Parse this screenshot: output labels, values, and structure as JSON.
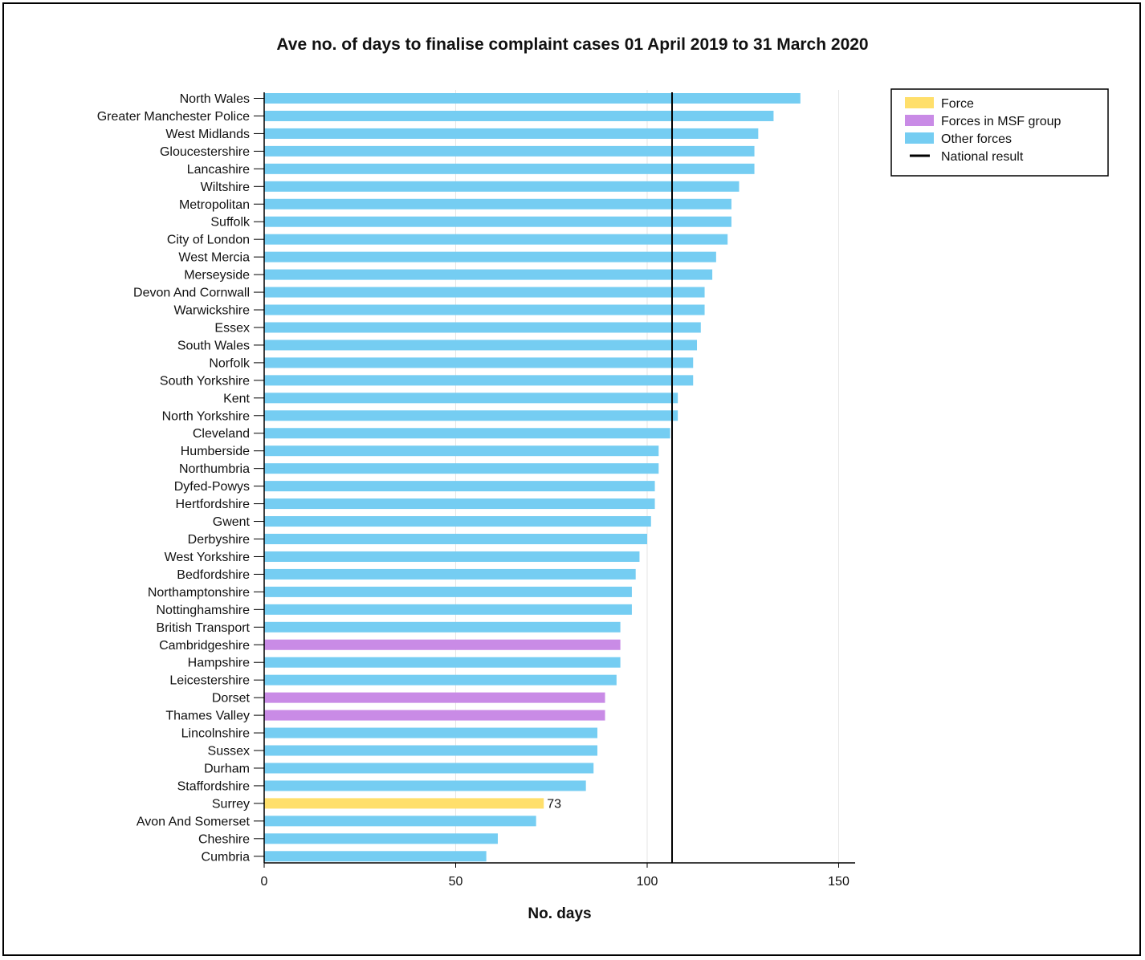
{
  "chart_data": {
    "type": "bar",
    "orientation": "horizontal",
    "title": "Ave no. of days to finalise complaint cases 01 April 2019 to 31 March 2020",
    "xlabel": "No. days",
    "ylabel": "",
    "xlim": [
      0,
      155
    ],
    "xticks": [
      0,
      50,
      100,
      150
    ],
    "grid": true,
    "legend_position": "top-right",
    "national_result": 106.5,
    "colors": {
      "force": "#FFDF6B",
      "msf": "#C98BE6",
      "other": "#75CDF2",
      "national": "#000000"
    },
    "legend": [
      {
        "key": "force",
        "label": "Force",
        "kind": "swatch"
      },
      {
        "key": "msf",
        "label": "Forces in MSF group",
        "kind": "swatch"
      },
      {
        "key": "other",
        "label": "Other forces",
        "kind": "swatch"
      },
      {
        "key": "national",
        "label": "National result",
        "kind": "line"
      }
    ],
    "categories": [
      "North Wales",
      "Greater Manchester Police",
      "West Midlands",
      "Gloucestershire",
      "Lancashire",
      "Wiltshire",
      "Metropolitan",
      "Suffolk",
      "City of London",
      "West Mercia",
      "Merseyside",
      "Devon And Cornwall",
      "Warwickshire",
      "Essex",
      "South Wales",
      "Norfolk",
      "South Yorkshire",
      "Kent",
      "North Yorkshire",
      "Cleveland",
      "Humberside",
      "Northumbria",
      "Dyfed-Powys",
      "Hertfordshire",
      "Gwent",
      "Derbyshire",
      "West Yorkshire",
      "Bedfordshire",
      "Northamptonshire",
      "Nottinghamshire",
      "British Transport",
      "Cambridgeshire",
      "Hampshire",
      "Leicestershire",
      "Dorset",
      "Thames Valley",
      "Lincolnshire",
      "Sussex",
      "Durham",
      "Staffordshire",
      "Surrey",
      "Avon And Somerset",
      "Cheshire",
      "Cumbria"
    ],
    "values": [
      140,
      133,
      129,
      128,
      128,
      124,
      122,
      122,
      121,
      118,
      117,
      115,
      115,
      114,
      113,
      112,
      112,
      108,
      108,
      106,
      103,
      103,
      102,
      102,
      101,
      100,
      98,
      97,
      96,
      96,
      93,
      93,
      93,
      92,
      89,
      89,
      87,
      87,
      86,
      84,
      73,
      71,
      61,
      58
    ],
    "groups": [
      "other",
      "other",
      "other",
      "other",
      "other",
      "other",
      "other",
      "other",
      "other",
      "other",
      "other",
      "other",
      "other",
      "other",
      "other",
      "other",
      "other",
      "other",
      "other",
      "other",
      "other",
      "other",
      "other",
      "other",
      "other",
      "other",
      "other",
      "other",
      "other",
      "other",
      "other",
      "msf",
      "other",
      "other",
      "msf",
      "msf",
      "other",
      "other",
      "other",
      "other",
      "force",
      "other",
      "other",
      "other"
    ],
    "data_labels": [
      {
        "category": "Surrey",
        "text": "73"
      }
    ]
  }
}
